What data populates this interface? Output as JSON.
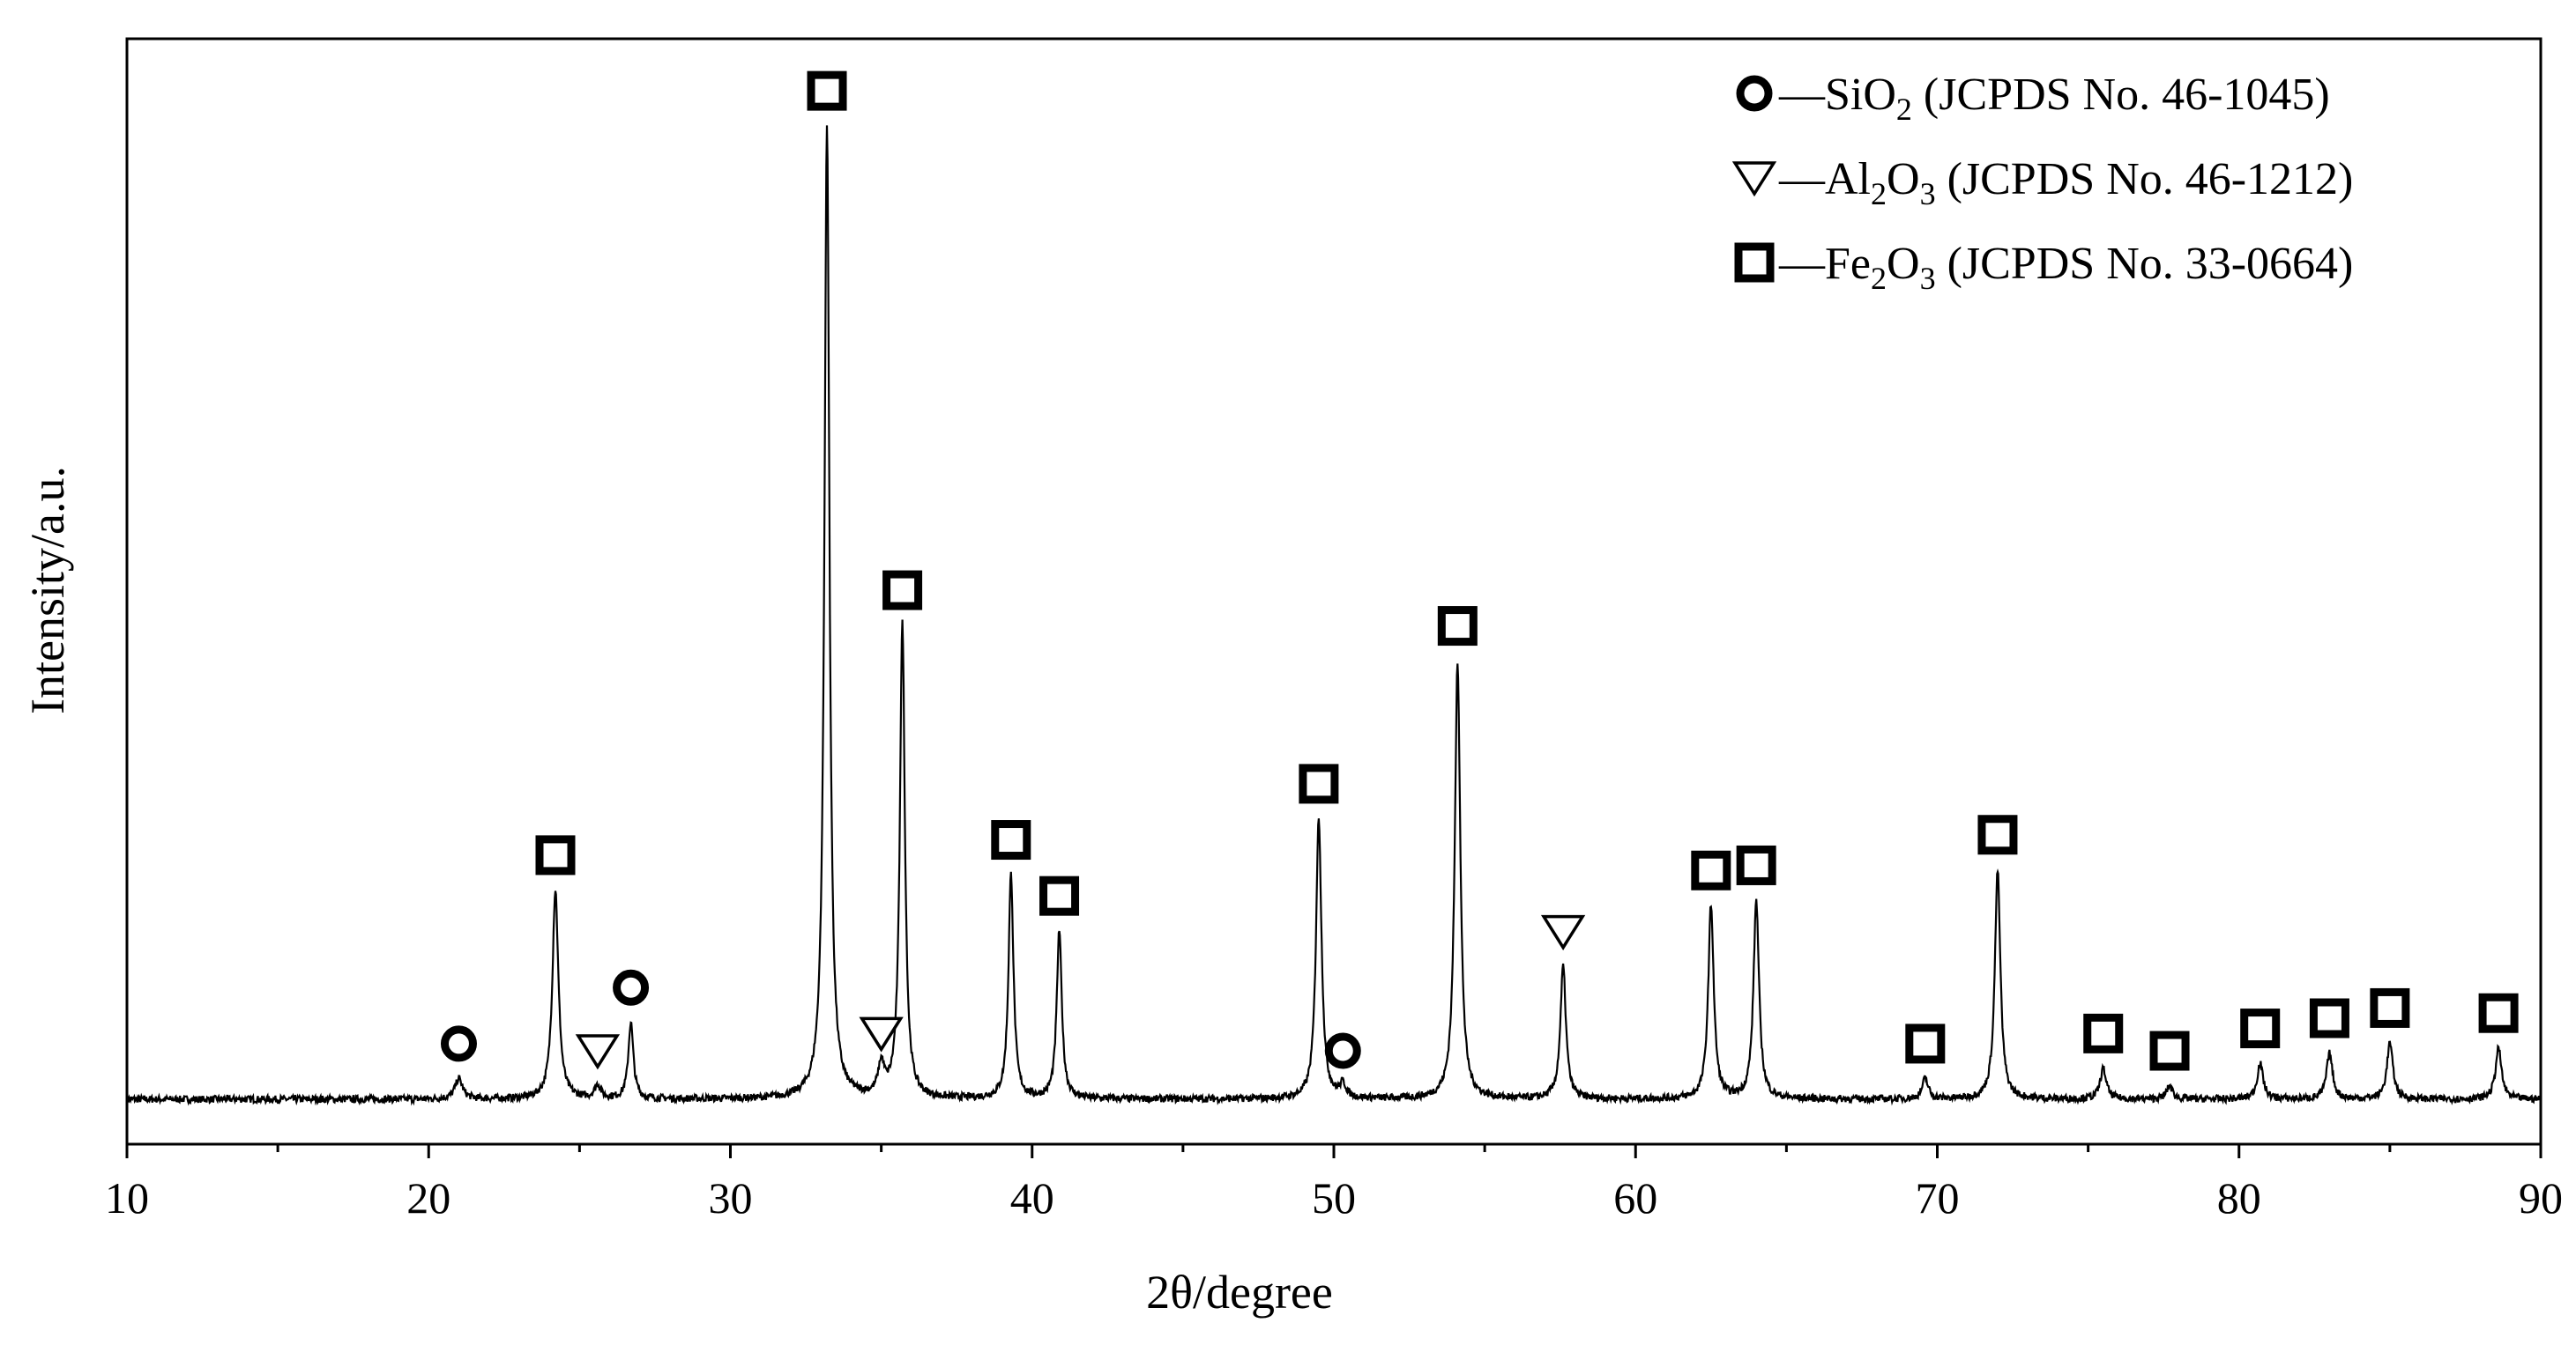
{
  "chart_data": {
    "type": "line",
    "xlabel": "2θ/degree",
    "ylabel": "Intensity/a.u.",
    "xlim": [
      10,
      90
    ],
    "ylim": [
      0,
      100
    ],
    "x_ticks": [
      "10",
      "20",
      "30",
      "40",
      "50",
      "60",
      "70",
      "80",
      "90"
    ],
    "y_ticks_shown": false,
    "grid": false,
    "legend_position": "top-right",
    "legend": [
      {
        "symbol": "circle",
        "phase": "SiO",
        "sub1": "2",
        "mid": "",
        "sub2": "",
        "ref": " (JCPDS No. 46-1045)"
      },
      {
        "symbol": "triangle",
        "phase": "Al",
        "sub1": "2",
        "mid": "O",
        "sub2": "3",
        "ref": " (JCPDS No. 46-1212)"
      },
      {
        "symbol": "square",
        "phase": "Fe",
        "sub1": "2",
        "mid": "O",
        "sub2": "3",
        "ref": " (JCPDS No. 33-0664)"
      }
    ],
    "baseline": 2.5,
    "peaks": [
      {
        "x": 21.0,
        "y": 4.5,
        "w": 0.15,
        "phase": "circle"
      },
      {
        "x": 24.2,
        "y": 23,
        "w": 0.12,
        "phase": "square"
      },
      {
        "x": 25.6,
        "y": 3.8,
        "w": 0.12,
        "phase": "triangle"
      },
      {
        "x": 26.7,
        "y": 10,
        "w": 0.1,
        "phase": "circle"
      },
      {
        "x": 33.2,
        "y": 98,
        "w": 0.1,
        "phase": "square"
      },
      {
        "x": 35.0,
        "y": 5.5,
        "w": 0.12,
        "phase": "triangle"
      },
      {
        "x": 35.7,
        "y": 49,
        "w": 0.1,
        "phase": "square"
      },
      {
        "x": 39.3,
        "y": 24.5,
        "w": 0.1,
        "phase": "square"
      },
      {
        "x": 40.9,
        "y": 19,
        "w": 0.1,
        "phase": "square"
      },
      {
        "x": 49.5,
        "y": 30,
        "w": 0.11,
        "phase": "square"
      },
      {
        "x": 50.3,
        "y": 3.8,
        "w": 0.12,
        "phase": "circle"
      },
      {
        "x": 54.1,
        "y": 45.5,
        "w": 0.11,
        "phase": "square"
      },
      {
        "x": 57.6,
        "y": 15.5,
        "w": 0.11,
        "phase": "triangle"
      },
      {
        "x": 62.5,
        "y": 21.5,
        "w": 0.11,
        "phase": "square"
      },
      {
        "x": 64.0,
        "y": 22,
        "w": 0.11,
        "phase": "square"
      },
      {
        "x": 69.6,
        "y": 4.5,
        "w": 0.12,
        "phase": "square"
      },
      {
        "x": 72.0,
        "y": 25,
        "w": 0.11,
        "phase": "square"
      },
      {
        "x": 75.5,
        "y": 5.5,
        "w": 0.12,
        "phase": "square"
      },
      {
        "x": 77.7,
        "y": 3.8,
        "w": 0.12,
        "phase": "square"
      },
      {
        "x": 80.7,
        "y": 6,
        "w": 0.12,
        "phase": "square"
      },
      {
        "x": 83.0,
        "y": 7,
        "w": 0.12,
        "phase": "square"
      },
      {
        "x": 85.0,
        "y": 8,
        "w": 0.12,
        "phase": "square"
      },
      {
        "x": 88.6,
        "y": 7.5,
        "w": 0.12,
        "phase": "square"
      }
    ]
  }
}
